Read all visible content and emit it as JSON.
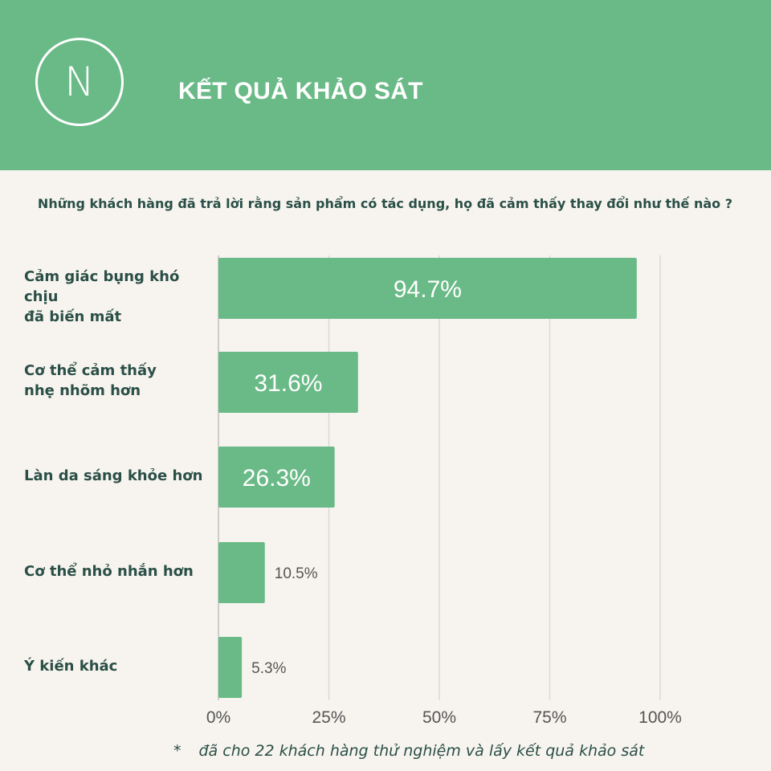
{
  "header": {
    "logo_letter": "N",
    "title": "KẾT QUẢ KHẢO SÁT",
    "background": "#6aba87"
  },
  "question": "Những khách hàng đã trả lời rằng sản phẩm có tác dụng, họ đã cảm thấy thay đổi như thế nào ?",
  "chart_data": {
    "type": "bar",
    "orientation": "horizontal",
    "categories": [
      [
        "Cảm giác bụng khó chịu",
        "đã biến mất"
      ],
      [
        "Cơ thể cảm thấy",
        "nhẹ nhõm hơn"
      ],
      [
        "Làn da sáng khỏe hơn"
      ],
      [
        "Cơ thể nhỏ nhắn hơn"
      ],
      [
        "Ý kiến khác"
      ]
    ],
    "values": [
      94.7,
      31.6,
      26.3,
      10.5,
      5.3
    ],
    "value_labels": [
      "94.7%",
      "31.6%",
      "26.3%",
      "10.5%",
      "5.3%"
    ],
    "xlim": [
      0,
      100
    ],
    "x_ticks": [
      0,
      25,
      50,
      75,
      100
    ],
    "x_tick_labels": [
      "0%",
      "25%",
      "50%",
      "75%",
      "100%"
    ],
    "grid": true,
    "bar_color": "#6aba87",
    "grid_color": "#d9d9d9"
  },
  "footnote": {
    "marker": "*",
    "text": "đã cho 22 khách hàng thử nghiệm và lấy kết quả khảo sát"
  }
}
